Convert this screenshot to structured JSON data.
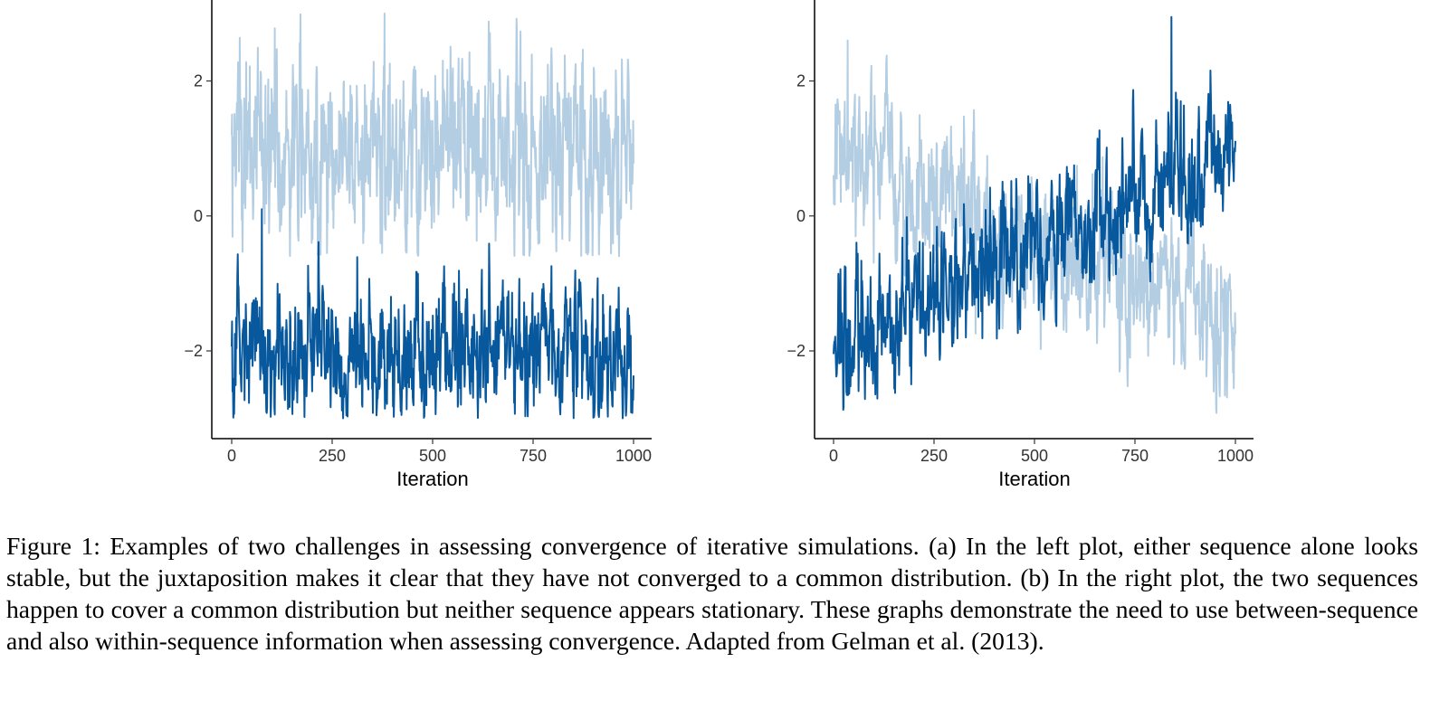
{
  "figure": {
    "caption_label": "Figure 1:",
    "caption_text": "Examples of two challenges in assessing convergence of iterative simulations. (a) In the left plot, either sequence alone looks stable, but the juxtaposition makes it clear that they have not converged to a common distribution. (b) In the right plot, the two sequences happen to cover a common distribution but neither sequence appears stationary. These graphs demonstrate the need to use between-sequence and also within-sequence information when assessing convergence. Adapted from Gelman et al. (2013)."
  },
  "colors": {
    "dark_chain": "#08589e",
    "light_chain": "#b3cde3",
    "axis": "#000000"
  },
  "chart_data": [
    {
      "type": "line",
      "xlabel": "Iteration",
      "ylabel": "",
      "xlim": [
        0,
        1000
      ],
      "ylim": [
        -3.3,
        3.2
      ],
      "xticks": [
        0,
        250,
        500,
        750,
        1000
      ],
      "xtick_labels": [
        "0",
        "250",
        "500",
        "750",
        "1000"
      ],
      "yticks": [
        -2,
        0,
        2
      ],
      "ytick_labels": [
        "−2",
        "0",
        "2"
      ],
      "grid": false,
      "series": [
        {
          "color": "#b3cde3",
          "n": 1000,
          "mean": [
            1.0,
            1.0
          ],
          "sd": 0.75,
          "min": -0.6,
          "max": 3.0,
          "peak": [
            380,
            3.0
          ]
        },
        {
          "color": "#08589e",
          "n": 1000,
          "mean": [
            -2.0,
            -2.0
          ],
          "sd": 0.5,
          "min": -3.0,
          "max": 0.1,
          "peak": [
            75,
            0.1
          ]
        }
      ]
    },
    {
      "type": "line",
      "xlabel": "Iteration",
      "ylabel": "",
      "xlim": [
        0,
        1000
      ],
      "ylim": [
        -3.3,
        3.2
      ],
      "xticks": [
        0,
        250,
        500,
        750,
        1000
      ],
      "xtick_labels": [
        "0",
        "250",
        "500",
        "750",
        "1000"
      ],
      "yticks": [
        -2,
        0,
        2
      ],
      "ytick_labels": [
        "−2",
        "0",
        "2"
      ],
      "grid": false,
      "series": [
        {
          "color": "#b3cde3",
          "n": 1000,
          "mean": [
            0.8,
            -1.6
          ],
          "sd": 0.55,
          "min": -3.0,
          "max": 2.6,
          "peak": [
            35,
            2.6
          ]
        },
        {
          "color": "#08589e",
          "n": 1000,
          "mean": [
            -2.0,
            1.0
          ],
          "sd": 0.5,
          "min": -3.0,
          "max": 2.95,
          "peak": [
            840,
            2.95
          ]
        }
      ]
    }
  ]
}
